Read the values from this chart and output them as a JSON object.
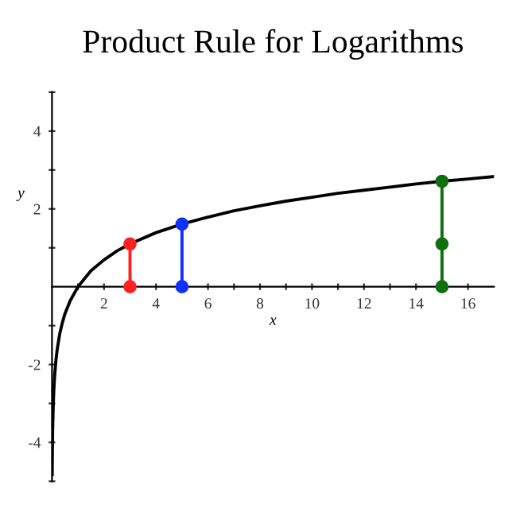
{
  "chart_data": {
    "type": "line",
    "title": "Product Rule for Logarithms",
    "xlabel": "x",
    "ylabel": "y",
    "xlim": [
      0,
      17
    ],
    "ylim": [
      -5,
      5
    ],
    "xticks": [
      {
        "value": 1,
        "label": null
      },
      2,
      {
        "value": 3,
        "label": null
      },
      4,
      {
        "value": 5,
        "label": null
      },
      6,
      {
        "value": 7,
        "label": null
      },
      8,
      {
        "value": 9,
        "label": null
      },
      10,
      {
        "value": 11,
        "label": null
      },
      12,
      {
        "value": 13,
        "label": null
      },
      14,
      {
        "value": 15,
        "label": null
      },
      16
    ],
    "yticks": [
      {
        "value": -5,
        "label": null
      },
      -4,
      {
        "value": -3,
        "label": null
      },
      -2,
      {
        "value": -1,
        "label": null
      },
      {
        "value": 1,
        "label": null
      },
      2,
      {
        "value": 3,
        "label": null
      },
      4,
      {
        "value": 5,
        "label": null
      }
    ],
    "grid": false,
    "legend": false,
    "series": [
      {
        "color": "#000000",
        "marker": "none",
        "x": [
          0.008,
          0.01,
          0.015,
          0.02,
          0.03,
          0.05,
          0.07,
          0.1,
          0.15,
          0.2,
          0.3,
          0.4,
          0.5,
          0.7,
          1,
          1.5,
          2,
          2.5,
          3,
          4,
          5,
          6,
          7,
          8,
          9,
          10,
          11,
          12,
          13,
          14,
          15,
          16,
          17
        ],
        "values": [
          -4.83,
          -4.61,
          -4.2,
          -3.91,
          -3.51,
          -3.0,
          -2.66,
          -2.3,
          -1.9,
          -1.61,
          -1.2,
          -0.92,
          -0.69,
          -0.36,
          0,
          0.41,
          0.69,
          0.92,
          1.1,
          1.39,
          1.61,
          1.79,
          1.95,
          2.08,
          2.2,
          2.3,
          2.4,
          2.48,
          2.56,
          2.64,
          2.71,
          2.77,
          2.83
        ]
      },
      {
        "color": "#ff2020",
        "marker": "circle",
        "x": [
          3,
          3
        ],
        "values": [
          0,
          1.1
        ]
      },
      {
        "color": "#1030ff",
        "marker": "circle",
        "x": [
          5,
          5
        ],
        "values": [
          0,
          1.61
        ]
      },
      {
        "color": "#107010",
        "marker": "circle",
        "x": [
          15,
          15,
          15
        ],
        "values": [
          0,
          1.1,
          2.71
        ]
      }
    ]
  }
}
